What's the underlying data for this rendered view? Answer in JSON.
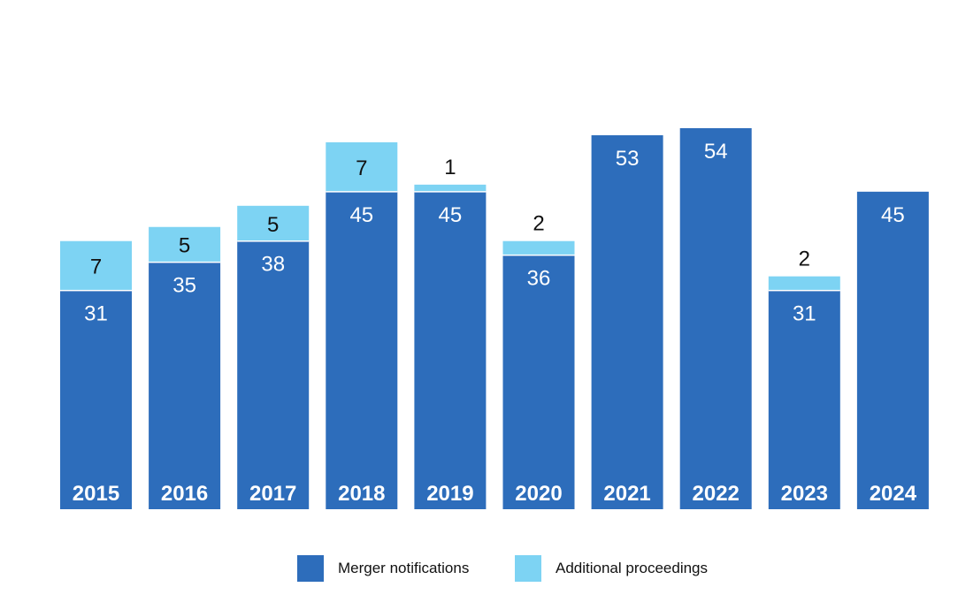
{
  "chart_data": {
    "type": "bar",
    "stacked": true,
    "categories": [
      "2015",
      "2016",
      "2017",
      "2018",
      "2019",
      "2020",
      "2021",
      "2022",
      "2023",
      "2024"
    ],
    "series": [
      {
        "name": "Merger notifications",
        "color": "#2d6dbb",
        "values": [
          31,
          35,
          38,
          45,
          45,
          36,
          53,
          54,
          31,
          45
        ],
        "labels": [
          "31",
          "35",
          "38",
          "45",
          "45",
          "36",
          "53",
          "54",
          "31",
          "45"
        ]
      },
      {
        "name": "Additional proceedings",
        "color": "#7dd3f3",
        "values": [
          7,
          5,
          5,
          7,
          1,
          2,
          0,
          0,
          2,
          0
        ],
        "labels": [
          "7",
          "5",
          "5",
          "7",
          "1",
          "2",
          "",
          "",
          "2",
          ""
        ]
      }
    ],
    "ylim": [
      0,
      54
    ],
    "grid": false,
    "legend_position": "bottom"
  },
  "legend": {
    "item1": "Merger notifications",
    "item2": "Additional proceedings"
  }
}
